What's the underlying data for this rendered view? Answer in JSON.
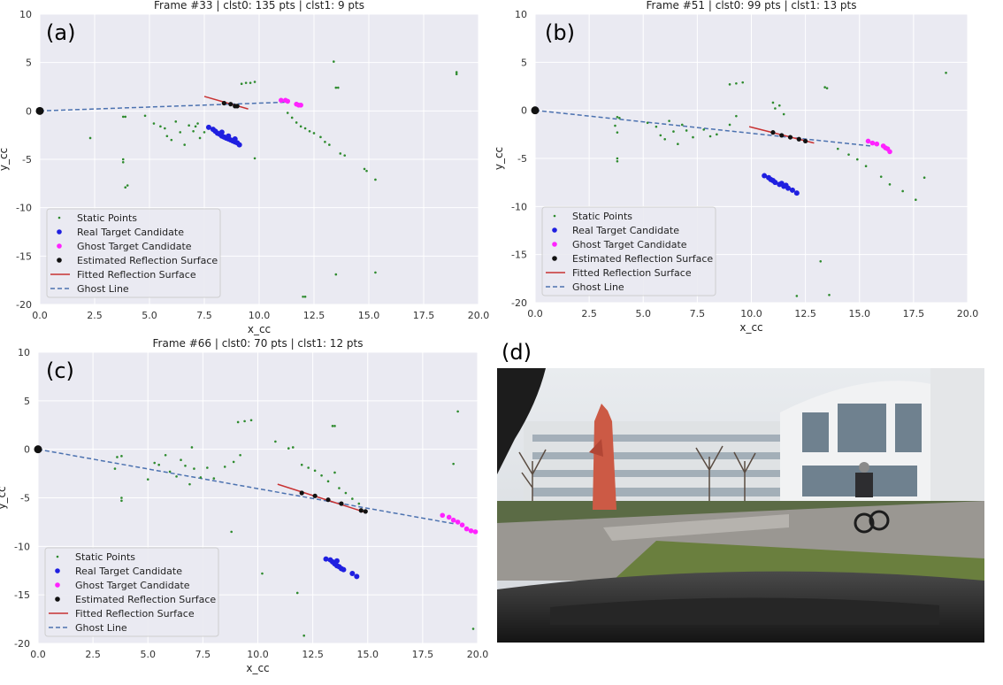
{
  "colors": {
    "plot_bg": "#eaeaf2",
    "grid": "#ffffff",
    "static": "#2e8b2e",
    "real": "#1f1fe0",
    "ghost": "#ff22ff",
    "surface_pts": "#111111",
    "fitted_line": "#c83232",
    "ghost_line": "#4c72b0"
  },
  "legend": {
    "static": "Static Points",
    "real": "Real Target Candidate",
    "ghost": "Ghost Target Candidate",
    "surface": "Estimated Reflection Surface",
    "fitted": "Fitted Reflection Surface",
    "ghostline": "Ghost Line",
    "placement": "lower-left"
  },
  "panel_d": {
    "label": "(d)",
    "description_icon": "camera-photo"
  },
  "chart_data": [
    {
      "type": "scatter",
      "panel_label": "(a)",
      "title": "Frame #33 | clst0: 135 pts | clst1: 9 pts",
      "xlabel": "x_cc",
      "ylabel": "y_cc",
      "xlim": [
        0,
        20
      ],
      "ylim": [
        -20,
        10
      ],
      "xticks": [
        "0.0",
        "2.5",
        "5.0",
        "7.5",
        "10.0",
        "12.5",
        "15.0",
        "17.5",
        "20.0"
      ],
      "yticks": [
        "10",
        "5",
        "0",
        "-5",
        "-10",
        "-15",
        "-20"
      ],
      "grid": true,
      "static_points": [
        [
          2.3,
          -2.8
        ],
        [
          3.8,
          -0.6
        ],
        [
          3.9,
          -0.6
        ],
        [
          3.8,
          -5.0
        ],
        [
          3.8,
          -5.3
        ],
        [
          4.0,
          -7.7
        ],
        [
          3.9,
          -7.9
        ],
        [
          4.8,
          -0.5
        ],
        [
          5.2,
          -1.3
        ],
        [
          5.5,
          -1.6
        ],
        [
          5.7,
          -1.8
        ],
        [
          5.8,
          -2.6
        ],
        [
          6.0,
          -3.0
        ],
        [
          6.2,
          -1.1
        ],
        [
          6.4,
          -2.2
        ],
        [
          6.6,
          -3.5
        ],
        [
          6.8,
          -1.5
        ],
        [
          7.0,
          -2.1
        ],
        [
          7.2,
          -1.3
        ],
        [
          7.3,
          -2.8
        ],
        [
          7.5,
          -2.2
        ],
        [
          7.1,
          -1.6
        ],
        [
          9.2,
          2.8
        ],
        [
          9.4,
          2.9
        ],
        [
          9.6,
          2.9
        ],
        [
          9.8,
          3.0
        ],
        [
          9.8,
          -4.9
        ],
        [
          11.3,
          -0.2
        ],
        [
          11.5,
          -0.7
        ],
        [
          11.7,
          -1.2
        ],
        [
          11.9,
          -1.6
        ],
        [
          12.1,
          -1.8
        ],
        [
          12.3,
          -2.1
        ],
        [
          12.5,
          -2.3
        ],
        [
          12.8,
          -2.7
        ],
        [
          13.0,
          -3.2
        ],
        [
          13.2,
          -3.5
        ],
        [
          13.4,
          5.1
        ],
        [
          13.5,
          2.4
        ],
        [
          13.6,
          2.4
        ],
        [
          13.7,
          -4.4
        ],
        [
          13.9,
          -4.6
        ],
        [
          13.5,
          -16.9
        ],
        [
          14.8,
          -6.0
        ],
        [
          14.9,
          -6.2
        ],
        [
          15.3,
          -7.1
        ],
        [
          15.3,
          -16.7
        ],
        [
          19.0,
          3.8
        ],
        [
          19.0,
          4.0
        ],
        [
          12.0,
          -19.2
        ],
        [
          12.1,
          -19.2
        ]
      ],
      "real_points": [
        [
          7.7,
          -1.7
        ],
        [
          7.9,
          -1.9
        ],
        [
          8.0,
          -2.1
        ],
        [
          8.1,
          -2.3
        ],
        [
          8.2,
          -2.4
        ],
        [
          8.3,
          -2.6
        ],
        [
          8.4,
          -2.7
        ],
        [
          8.5,
          -2.8
        ],
        [
          8.6,
          -2.9
        ],
        [
          8.7,
          -3.0
        ],
        [
          8.8,
          -3.1
        ],
        [
          8.9,
          -3.2
        ],
        [
          9.0,
          -3.3
        ],
        [
          9.1,
          -3.5
        ],
        [
          8.3,
          -2.2
        ],
        [
          8.6,
          -2.6
        ],
        [
          8.9,
          -2.9
        ]
      ],
      "ghost_points": [
        [
          11.0,
          1.1
        ],
        [
          11.2,
          1.1
        ],
        [
          11.3,
          1.0
        ],
        [
          11.7,
          0.7
        ],
        [
          11.8,
          0.6
        ],
        [
          11.9,
          0.6
        ]
      ],
      "surface_points": [
        [
          8.4,
          0.8
        ],
        [
          8.7,
          0.7
        ],
        [
          8.9,
          0.5
        ],
        [
          9.0,
          0.5
        ]
      ],
      "fitted_line": [
        [
          7.5,
          1.5
        ],
        [
          9.5,
          0.2
        ]
      ],
      "ghost_line": [
        [
          0,
          0
        ],
        [
          11.2,
          0.9
        ]
      ]
    },
    {
      "type": "scatter",
      "panel_label": "(b)",
      "title": "Frame #51 | clst0: 99 pts | clst1: 13 pts",
      "xlabel": "x_cc",
      "ylabel": "y_cc",
      "xlim": [
        0,
        20
      ],
      "ylim": [
        -20,
        10
      ],
      "xticks": [
        "0.0",
        "2.5",
        "5.0",
        "7.5",
        "10.0",
        "12.5",
        "15.0",
        "17.5",
        "20.0"
      ],
      "yticks": [
        "10",
        "5",
        "0",
        "-5",
        "-10",
        "-15",
        "-20"
      ],
      "grid": true,
      "static_points": [
        [
          3.8,
          -0.7
        ],
        [
          3.9,
          -0.8
        ],
        [
          3.7,
          -1.6
        ],
        [
          3.8,
          -2.3
        ],
        [
          3.8,
          -5.0
        ],
        [
          3.8,
          -5.3
        ],
        [
          5.2,
          -1.3
        ],
        [
          5.6,
          -1.7
        ],
        [
          5.8,
          -2.6
        ],
        [
          6.0,
          -3.0
        ],
        [
          6.2,
          -1.1
        ],
        [
          6.4,
          -2.2
        ],
        [
          6.6,
          -3.5
        ],
        [
          6.8,
          -1.5
        ],
        [
          7.0,
          -2.1
        ],
        [
          7.3,
          -2.8
        ],
        [
          7.8,
          -2.0
        ],
        [
          8.1,
          -2.7
        ],
        [
          8.4,
          -2.5
        ],
        [
          9.0,
          -1.5
        ],
        [
          9.3,
          -0.6
        ],
        [
          9.0,
          2.7
        ],
        [
          9.3,
          2.8
        ],
        [
          9.6,
          2.9
        ],
        [
          11.0,
          0.8
        ],
        [
          11.1,
          0.2
        ],
        [
          11.3,
          0.5
        ],
        [
          11.5,
          -0.4
        ],
        [
          13.4,
          2.4
        ],
        [
          13.5,
          2.3
        ],
        [
          14.0,
          -4.0
        ],
        [
          14.5,
          -4.6
        ],
        [
          14.9,
          -5.1
        ],
        [
          15.3,
          -5.8
        ],
        [
          16.0,
          -6.9
        ],
        [
          16.4,
          -7.7
        ],
        [
          17.0,
          -8.4
        ],
        [
          17.6,
          -9.3
        ],
        [
          13.2,
          -15.7
        ],
        [
          13.6,
          -19.2
        ],
        [
          12.1,
          -19.3
        ],
        [
          18.0,
          -7.0
        ],
        [
          19.0,
          3.9
        ]
      ],
      "real_points": [
        [
          10.6,
          -6.8
        ],
        [
          10.8,
          -7.0
        ],
        [
          11.0,
          -7.3
        ],
        [
          11.1,
          -7.5
        ],
        [
          11.3,
          -7.7
        ],
        [
          11.5,
          -7.9
        ],
        [
          11.7,
          -8.1
        ],
        [
          11.9,
          -8.3
        ],
        [
          12.1,
          -8.6
        ],
        [
          10.9,
          -7.2
        ],
        [
          11.4,
          -7.6
        ],
        [
          11.6,
          -7.8
        ]
      ],
      "ghost_points": [
        [
          15.4,
          -3.2
        ],
        [
          15.6,
          -3.4
        ],
        [
          15.8,
          -3.5
        ],
        [
          16.1,
          -3.7
        ],
        [
          16.3,
          -4.0
        ],
        [
          16.4,
          -4.3
        ],
        [
          16.2,
          -3.9
        ]
      ],
      "surface_points": [
        [
          11.0,
          -2.3
        ],
        [
          11.4,
          -2.6
        ],
        [
          11.8,
          -2.8
        ],
        [
          12.2,
          -3.0
        ],
        [
          12.5,
          -3.2
        ]
      ],
      "fitted_line": [
        [
          9.9,
          -1.7
        ],
        [
          12.9,
          -3.4
        ]
      ],
      "ghost_line": [
        [
          0,
          0
        ],
        [
          15.5,
          -3.7
        ]
      ]
    },
    {
      "type": "scatter",
      "panel_label": "(c)",
      "title": "Frame #66 | clst0: 70 pts | clst1: 12 pts",
      "xlabel": "x_cc",
      "ylabel": "y_cc",
      "xlim": [
        0,
        20
      ],
      "ylim": [
        -20,
        10
      ],
      "xticks": [
        "0.0",
        "2.5",
        "5.0",
        "7.5",
        "10.0",
        "12.5",
        "15.0",
        "17.5",
        "20.0"
      ],
      "yticks": [
        "10",
        "5",
        "0",
        "-5",
        "-10",
        "-15",
        "-20"
      ],
      "grid": true,
      "static_points": [
        [
          3.6,
          -0.8
        ],
        [
          3.8,
          -0.7
        ],
        [
          3.5,
          -2.0
        ],
        [
          3.8,
          -5.0
        ],
        [
          3.8,
          -5.3
        ],
        [
          5.0,
          -3.1
        ],
        [
          5.3,
          -1.4
        ],
        [
          5.5,
          -1.6
        ],
        [
          5.8,
          -0.6
        ],
        [
          6.0,
          -2.3
        ],
        [
          6.3,
          -2.8
        ],
        [
          6.5,
          -1.1
        ],
        [
          6.7,
          -1.7
        ],
        [
          6.9,
          -3.6
        ],
        [
          7.1,
          -2.0
        ],
        [
          7.4,
          -2.9
        ],
        [
          7.7,
          -1.9
        ],
        [
          8.0,
          -3.0
        ],
        [
          8.5,
          -1.8
        ],
        [
          8.9,
          -1.3
        ],
        [
          9.2,
          -0.6
        ],
        [
          9.1,
          2.8
        ],
        [
          9.4,
          2.9
        ],
        [
          9.7,
          3.0
        ],
        [
          10.8,
          0.8
        ],
        [
          11.4,
          0.1
        ],
        [
          11.6,
          0.2
        ],
        [
          12.0,
          -1.6
        ],
        [
          12.3,
          -1.9
        ],
        [
          12.6,
          -2.2
        ],
        [
          12.9,
          -2.7
        ],
        [
          13.2,
          -3.3
        ],
        [
          13.5,
          -2.4
        ],
        [
          13.7,
          -4.0
        ],
        [
          14.0,
          -4.5
        ],
        [
          14.3,
          -5.1
        ],
        [
          14.6,
          -5.6
        ],
        [
          13.4,
          2.4
        ],
        [
          13.5,
          2.4
        ],
        [
          8.8,
          -8.5
        ],
        [
          10.2,
          -12.8
        ],
        [
          11.8,
          -14.8
        ],
        [
          12.1,
          -19.2
        ],
        [
          18.9,
          -1.5
        ],
        [
          19.1,
          3.9
        ],
        [
          19.8,
          -18.5
        ],
        [
          7.0,
          0.2
        ]
      ],
      "real_points": [
        [
          13.1,
          -11.3
        ],
        [
          13.3,
          -11.4
        ],
        [
          13.4,
          -11.6
        ],
        [
          13.5,
          -11.8
        ],
        [
          13.6,
          -12.0
        ],
        [
          13.7,
          -12.1
        ],
        [
          13.8,
          -12.3
        ],
        [
          13.9,
          -12.4
        ],
        [
          14.3,
          -12.8
        ],
        [
          14.5,
          -13.1
        ],
        [
          13.6,
          -11.5
        ]
      ],
      "ghost_points": [
        [
          18.4,
          -6.8
        ],
        [
          18.7,
          -7.0
        ],
        [
          18.9,
          -7.3
        ],
        [
          19.1,
          -7.5
        ],
        [
          19.3,
          -7.8
        ],
        [
          19.5,
          -8.2
        ],
        [
          19.7,
          -8.4
        ],
        [
          19.9,
          -8.5
        ]
      ],
      "surface_points": [
        [
          12.0,
          -4.5
        ],
        [
          12.6,
          -4.8
        ],
        [
          13.2,
          -5.2
        ],
        [
          13.8,
          -5.6
        ],
        [
          14.7,
          -6.3
        ],
        [
          14.9,
          -6.4
        ]
      ],
      "fitted_line": [
        [
          10.9,
          -3.6
        ],
        [
          14.9,
          -6.5
        ]
      ],
      "ghost_line": [
        [
          0,
          0
        ],
        [
          19.0,
          -7.7
        ]
      ]
    }
  ]
}
